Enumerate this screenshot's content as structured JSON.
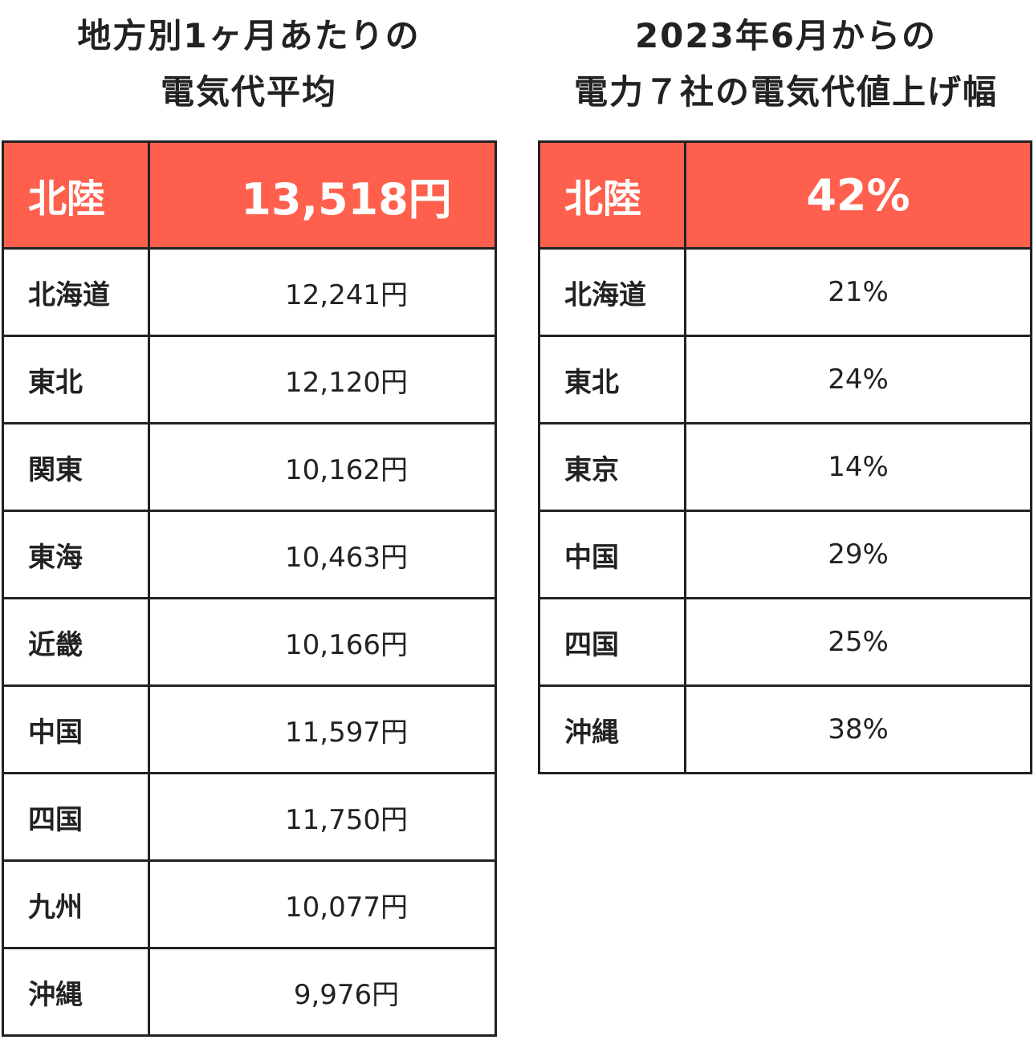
{
  "chart_data": [
    {
      "type": "table",
      "title": "地方別1ヶ月あたりの電気代平均",
      "title_lines": [
        "地方別1ヶ月あたりの",
        "電気代平均"
      ],
      "highlight": {
        "region": "北陸",
        "value": "13,518円"
      },
      "rows": [
        {
          "region": "北海道",
          "value": "12,241円"
        },
        {
          "region": "東北",
          "value": "12,120円"
        },
        {
          "region": "関東",
          "value": "10,162円"
        },
        {
          "region": "東海",
          "value": "10,463円"
        },
        {
          "region": "近畿",
          "value": "10,166円"
        },
        {
          "region": "中国",
          "value": "11,597円"
        },
        {
          "region": "四国",
          "value": "11,750円"
        },
        {
          "region": "九州",
          "value": "10,077円"
        },
        {
          "region": "沖縄",
          "value": "9,976円"
        }
      ]
    },
    {
      "type": "table",
      "title": "2023年6月からの電力７社の電気代値上げ幅",
      "title_lines": [
        "2023年6月からの",
        "電力７社の電気代値上げ幅"
      ],
      "highlight": {
        "region": "北陸",
        "value": "42%"
      },
      "rows": [
        {
          "region": "北海道",
          "value": "21%"
        },
        {
          "region": "東北",
          "value": "24%"
        },
        {
          "region": "東京",
          "value": "14%"
        },
        {
          "region": "中国",
          "value": "29%"
        },
        {
          "region": "四国",
          "value": "25%"
        },
        {
          "region": "沖縄",
          "value": "38%"
        }
      ]
    }
  ],
  "colors": {
    "highlight_bg": "#ff604e",
    "highlight_text": "#ffffff",
    "border": "#222222",
    "text": "#222222"
  }
}
